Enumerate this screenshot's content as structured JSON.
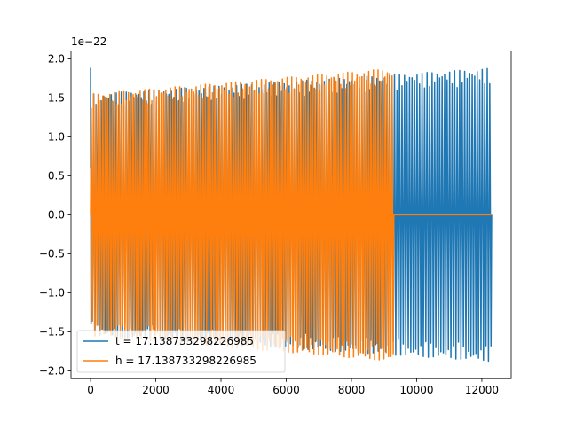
{
  "chart_data": {
    "type": "line",
    "title": "",
    "xlabel": "",
    "ylabel": "",
    "y_offset_label": "1e−22",
    "xlim": [
      -600,
      12900
    ],
    "ylim": [
      -2.1,
      2.1
    ],
    "x_ticks": [
      0,
      2000,
      4000,
      6000,
      8000,
      10000,
      12000
    ],
    "x_tick_labels": [
      "0",
      "2000",
      "4000",
      "6000",
      "8000",
      "10000",
      "12000"
    ],
    "y_ticks": [
      -2.0,
      -1.5,
      -1.0,
      -0.5,
      0.0,
      0.5,
      1.0,
      1.5,
      2.0
    ],
    "y_tick_labels": [
      "−2.0",
      "−1.5",
      "−1.0",
      "−0.5",
      "0.0",
      "0.5",
      "1.0",
      "1.5",
      "2.0"
    ],
    "grid": false,
    "legend_position": "lower-left",
    "series": [
      {
        "name": "t = 17.138733298226985",
        "color": "#1f77b4",
        "x_range": [
          0,
          12300
        ],
        "initial_spike": 1.88,
        "amplitude_start": 1.55,
        "amplitude_end": 1.88,
        "oscillations": 160
      },
      {
        "name": "h = 17.138733298226985",
        "color": "#ff7f0e",
        "x_range": [
          0,
          9300
        ],
        "amplitude_start": 1.55,
        "amplitude_end": 1.88,
        "oscillations": 130,
        "zero_until": 12300
      }
    ]
  }
}
